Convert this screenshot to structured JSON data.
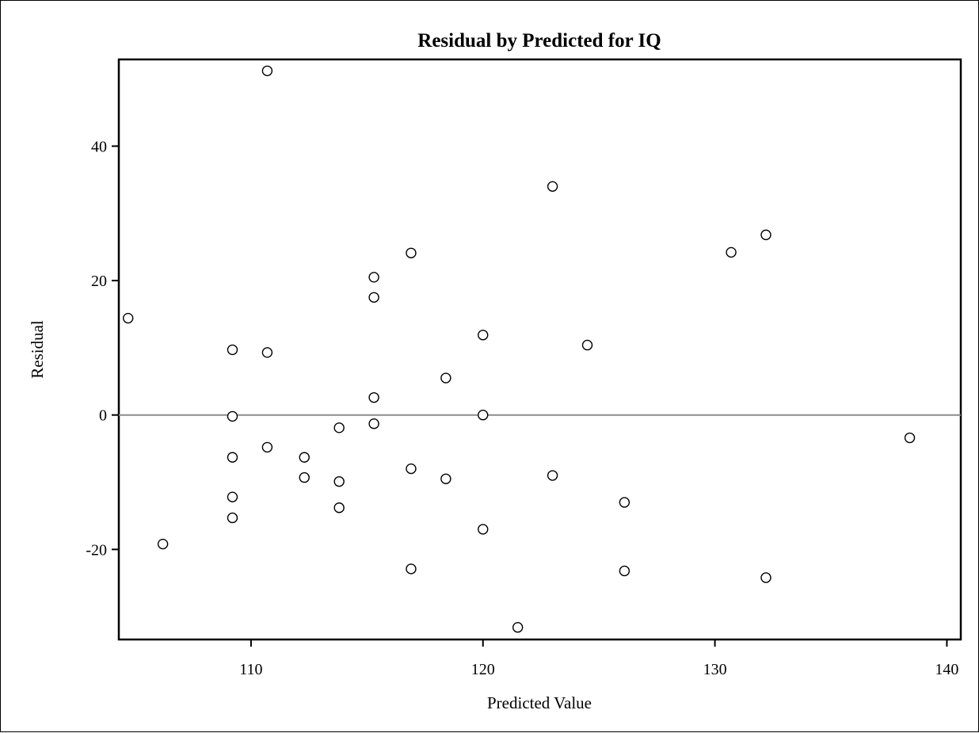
{
  "chart_data": {
    "type": "scatter",
    "title": "Residual by Predicted for IQ",
    "xlabel": "Predicted Value",
    "ylabel": "Residual",
    "xlim": [
      104.3,
      140.6
    ],
    "ylim": [
      -33.4,
      52.9
    ],
    "xticks": [
      "110",
      "120",
      "130",
      "140"
    ],
    "yticks": [
      "-20",
      "0",
      "20",
      "40"
    ],
    "reference_line": 0,
    "grid": false,
    "legend": "none",
    "marker": "open-circle",
    "colors": {
      "frame": "#000000",
      "reference_line": "#8c8c8c",
      "marker_stroke": "#000000",
      "marker_fill": "#ffffff"
    },
    "points": [
      {
        "x": 104.7,
        "y": 14.4
      },
      {
        "x": 106.2,
        "y": -19.2
      },
      {
        "x": 109.2,
        "y": 9.7
      },
      {
        "x": 109.2,
        "y": -0.2
      },
      {
        "x": 109.2,
        "y": -6.3
      },
      {
        "x": 109.2,
        "y": -12.2
      },
      {
        "x": 109.2,
        "y": -15.3
      },
      {
        "x": 110.7,
        "y": 51.2
      },
      {
        "x": 110.7,
        "y": 9.3
      },
      {
        "x": 110.7,
        "y": -4.8
      },
      {
        "x": 112.3,
        "y": -6.3
      },
      {
        "x": 112.3,
        "y": -9.3
      },
      {
        "x": 113.8,
        "y": -1.9
      },
      {
        "x": 113.8,
        "y": -9.9
      },
      {
        "x": 113.8,
        "y": -13.8
      },
      {
        "x": 115.3,
        "y": 20.5
      },
      {
        "x": 115.3,
        "y": 17.5
      },
      {
        "x": 115.3,
        "y": 2.6
      },
      {
        "x": 115.3,
        "y": -1.3
      },
      {
        "x": 116.9,
        "y": 24.1
      },
      {
        "x": 116.9,
        "y": -8.0
      },
      {
        "x": 116.9,
        "y": -22.9
      },
      {
        "x": 118.4,
        "y": 5.5
      },
      {
        "x": 118.4,
        "y": -9.5
      },
      {
        "x": 120.0,
        "y": 11.9
      },
      {
        "x": 120.0,
        "y": 0.0
      },
      {
        "x": 120.0,
        "y": -17.0
      },
      {
        "x": 121.5,
        "y": -31.6
      },
      {
        "x": 123.0,
        "y": 34.0
      },
      {
        "x": 123.0,
        "y": -9.0
      },
      {
        "x": 124.5,
        "y": 10.4
      },
      {
        "x": 126.1,
        "y": -13.0
      },
      {
        "x": 126.1,
        "y": -23.2
      },
      {
        "x": 130.7,
        "y": 24.2
      },
      {
        "x": 132.2,
        "y": 26.8
      },
      {
        "x": 132.2,
        "y": -24.2
      },
      {
        "x": 138.4,
        "y": -3.4
      }
    ]
  }
}
